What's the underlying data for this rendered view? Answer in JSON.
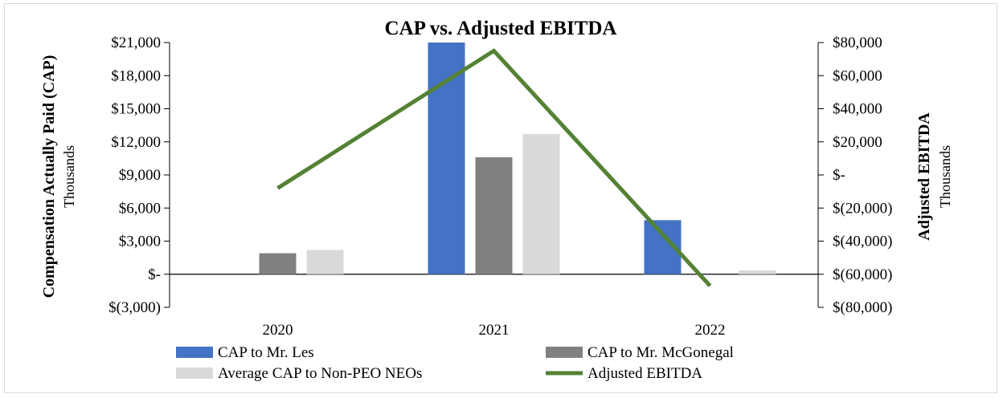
{
  "chart_data": {
    "type": "bar",
    "title": "CAP vs. Adjusted EBITDA",
    "categories": [
      "2020",
      "2021",
      "2022"
    ],
    "series": [
      {
        "name": "CAP to Mr. Les",
        "type": "bar",
        "axis": "left",
        "color": "#4472c4",
        "values": [
          0,
          21000,
          4900
        ]
      },
      {
        "name": "CAP to Mr. McGonegal",
        "type": "bar",
        "axis": "left",
        "color": "#808080",
        "values": [
          1900,
          10600,
          0
        ]
      },
      {
        "name": "Average CAP to Non-PEO NEOs",
        "type": "bar",
        "axis": "left",
        "color": "#d9d9d9",
        "values": [
          2200,
          12700,
          350
        ]
      },
      {
        "name": "Adjusted EBITDA",
        "type": "line",
        "axis": "right",
        "color": "#548235",
        "values": [
          -8000,
          75000,
          -67000
        ]
      }
    ],
    "y_left": {
      "label": "Compensation Actually Paid (CAP)",
      "sublabel": "Thousands",
      "ylim": [
        -3000,
        21000
      ],
      "ticks": [
        -3000,
        0,
        3000,
        6000,
        9000,
        12000,
        15000,
        18000,
        21000
      ],
      "tick_labels": [
        "$(3,000)",
        "$-",
        "$3,000",
        "$6,000",
        "$9,000",
        "$12,000",
        "$15,000",
        "$18,000",
        "$21,000"
      ]
    },
    "y_right": {
      "label": "Adjusted EBITDA",
      "sublabel": "Thousands",
      "ylim": [
        -80000,
        80000
      ],
      "ticks": [
        -80000,
        -60000,
        -40000,
        -20000,
        0,
        20000,
        40000,
        60000,
        80000
      ],
      "tick_labels": [
        "$(80,000)",
        "$(60,000)",
        "$(40,000)",
        "$(20,000)",
        "$-",
        "$20,000",
        "$40,000",
        "$60,000",
        "$80,000"
      ]
    },
    "legend": [
      {
        "label": "CAP to Mr. Les",
        "kind": "bar",
        "color": "#4472c4"
      },
      {
        "label": "CAP to Mr. McGonegal",
        "kind": "bar",
        "color": "#808080"
      },
      {
        "label": "Average CAP to Non-PEO NEOs",
        "kind": "bar",
        "color": "#d9d9d9"
      },
      {
        "label": "Adjusted EBITDA",
        "kind": "line",
        "color": "#548235"
      }
    ],
    "legend_position": "bottom",
    "grid": false
  }
}
